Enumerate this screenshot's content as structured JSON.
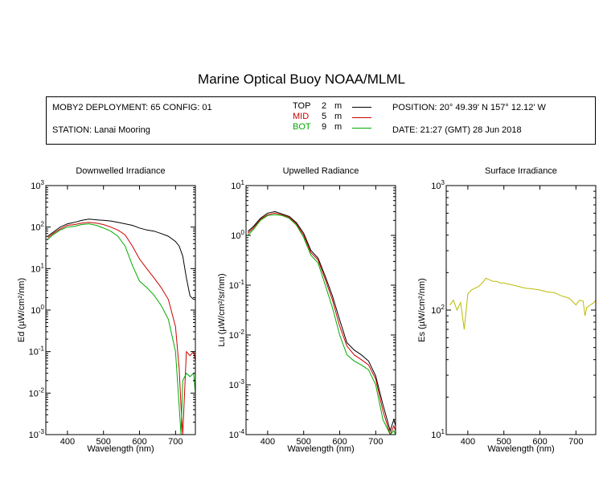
{
  "title": "Marine Optical Buoy NOAA/MLML",
  "info": {
    "deployment": "MOBY2 DEPLOYMENT: 65 CONFIG: 01",
    "station": "STATION: Lanai Mooring",
    "position": "POSITION: 20° 49.39' N   157° 12.12' W",
    "date": "DATE: 21:27 (GMT) 28 Jun 2018",
    "legend": [
      {
        "name": "TOP",
        "depth": "2",
        "unit": "m",
        "color": "#000000"
      },
      {
        "name": "MID",
        "depth": "5",
        "unit": "m",
        "color": "#cc0000"
      },
      {
        "name": "BOT",
        "depth": "9",
        "unit": "m",
        "color": "#00aa00"
      }
    ]
  },
  "colors": {
    "top": "#000000",
    "mid": "#cc0000",
    "bot": "#00aa00",
    "surface": "#bbbb00"
  },
  "chart_data": [
    {
      "type": "line",
      "title": "Downwelled Irradiance",
      "ylabel": "Ed  (µW/cm²/nm)",
      "xlabel": "Wavelength (nm)",
      "xlim": [
        340,
        755
      ],
      "ylim": [
        0.001,
        1000
      ],
      "yscale": "log",
      "xticks": [
        400,
        500,
        600,
        700
      ],
      "ytick_labels": [
        {
          "base": "10",
          "exp": "-3"
        },
        {
          "base": "10",
          "exp": "-2"
        },
        {
          "base": "10",
          "exp": "-1"
        },
        {
          "base": "10",
          "exp": "0"
        },
        {
          "base": "10",
          "exp": "1"
        },
        {
          "base": "10",
          "exp": "2"
        },
        {
          "base": "10",
          "exp": "3"
        }
      ],
      "series": [
        {
          "name": "TOP",
          "color": "#000000",
          "x": [
            345,
            360,
            380,
            400,
            420,
            440,
            460,
            480,
            500,
            520,
            540,
            560,
            580,
            600,
            620,
            640,
            660,
            680,
            700,
            710,
            720,
            730,
            740,
            750,
            755
          ],
          "y": [
            60,
            75,
            100,
            120,
            130,
            145,
            155,
            150,
            145,
            140,
            130,
            120,
            110,
            95,
            85,
            80,
            70,
            60,
            45,
            35,
            20,
            6,
            2.2,
            1.8,
            1.8
          ]
        },
        {
          "name": "MID",
          "color": "#cc0000",
          "x": [
            345,
            360,
            380,
            400,
            420,
            440,
            460,
            480,
            500,
            520,
            540,
            560,
            580,
            600,
            620,
            640,
            660,
            680,
            700,
            710,
            715,
            720,
            730,
            740,
            750,
            755
          ],
          "y": [
            55,
            70,
            90,
            110,
            115,
            125,
            130,
            125,
            115,
            100,
            85,
            65,
            35,
            17,
            10,
            6,
            3.5,
            1.8,
            0.4,
            0.04,
            0.005,
            0.001,
            0.1,
            0.08,
            0.1,
            0.06
          ]
        },
        {
          "name": "BOT",
          "color": "#00aa00",
          "x": [
            345,
            360,
            380,
            400,
            420,
            440,
            460,
            480,
            500,
            520,
            540,
            560,
            580,
            600,
            620,
            640,
            660,
            680,
            700,
            710,
            715,
            720,
            730,
            740,
            750,
            755
          ],
          "y": [
            50,
            65,
            85,
            100,
            105,
            115,
            120,
            110,
            95,
            80,
            60,
            35,
            12,
            5,
            3.5,
            2.3,
            1.3,
            0.6,
            0.1,
            0.005,
            0.001,
            0.02,
            0.03,
            0.025,
            0.03,
            0.01
          ]
        }
      ]
    },
    {
      "type": "line",
      "title": "Upwelled Radiance",
      "ylabel": "Lu  (µW/cm²/sr/nm)",
      "xlabel": "Wavelength (nm)",
      "xlim": [
        340,
        755
      ],
      "ylim": [
        0.0001,
        10
      ],
      "yscale": "log",
      "xticks": [
        400,
        500,
        600,
        700
      ],
      "ytick_labels": [
        {
          "base": "10",
          "exp": "-4"
        },
        {
          "base": "10",
          "exp": "-3"
        },
        {
          "base": "10",
          "exp": "-2"
        },
        {
          "base": "10",
          "exp": "-1"
        },
        {
          "base": "10",
          "exp": "0"
        },
        {
          "base": "10",
          "exp": "1"
        }
      ],
      "series": [
        {
          "name": "TOP",
          "color": "#000000",
          "x": [
            345,
            360,
            380,
            400,
            420,
            440,
            460,
            480,
            500,
            520,
            540,
            560,
            580,
            600,
            620,
            640,
            660,
            680,
            700,
            720,
            740,
            750,
            755
          ],
          "y": [
            1.2,
            1.5,
            2.2,
            2.8,
            3.0,
            2.7,
            2.4,
            1.8,
            1.1,
            0.5,
            0.35,
            0.15,
            0.06,
            0.02,
            0.007,
            0.005,
            0.004,
            0.003,
            0.0015,
            0.0004,
            0.00012,
            0.0002,
            0.00015
          ]
        },
        {
          "name": "MID",
          "color": "#cc0000",
          "x": [
            345,
            360,
            380,
            400,
            420,
            440,
            460,
            480,
            500,
            520,
            540,
            560,
            580,
            600,
            620,
            640,
            660,
            680,
            700,
            720,
            740,
            750,
            755
          ],
          "y": [
            1.1,
            1.4,
            2.1,
            2.6,
            2.8,
            2.6,
            2.3,
            1.7,
            1.0,
            0.45,
            0.32,
            0.13,
            0.05,
            0.015,
            0.006,
            0.004,
            0.0032,
            0.0025,
            0.0013,
            0.0003,
            0.0001,
            0.00015,
            0.00012
          ]
        },
        {
          "name": "BOT",
          "color": "#00aa00",
          "x": [
            345,
            360,
            380,
            400,
            420,
            440,
            460,
            480,
            500,
            520,
            540,
            560,
            580,
            600,
            620,
            640,
            660,
            680,
            700,
            720,
            740,
            750,
            755
          ],
          "y": [
            1.0,
            1.3,
            2.0,
            2.5,
            2.6,
            2.5,
            2.2,
            1.6,
            0.9,
            0.4,
            0.28,
            0.1,
            0.035,
            0.01,
            0.004,
            0.003,
            0.0025,
            0.002,
            0.001,
            0.0002,
            0.0001,
            0.00012,
            0.0001
          ]
        }
      ]
    },
    {
      "type": "line",
      "title": "Surface Irradiance",
      "ylabel": "Es  (µW/cm²/nm)",
      "xlabel": "Wavelength (nm)",
      "xlim": [
        340,
        755
      ],
      "ylim": [
        10,
        1000
      ],
      "yscale": "log",
      "xticks": [
        400,
        500,
        600,
        700
      ],
      "ytick_labels": [
        {
          "base": "10",
          "exp": "1"
        },
        {
          "base": "10",
          "exp": "2"
        },
        {
          "base": "10",
          "exp": "3"
        }
      ],
      "series": [
        {
          "name": "Surface",
          "color": "#bbbb00",
          "x": [
            350,
            360,
            370,
            380,
            390,
            400,
            410,
            420,
            430,
            440,
            450,
            460,
            470,
            480,
            490,
            500,
            520,
            540,
            560,
            580,
            600,
            620,
            640,
            660,
            680,
            690,
            700,
            710,
            720,
            725,
            730,
            740,
            750,
            755
          ],
          "y": [
            110,
            120,
            100,
            115,
            70,
            135,
            145,
            150,
            155,
            165,
            180,
            175,
            170,
            170,
            165,
            165,
            160,
            155,
            150,
            148,
            145,
            140,
            138,
            130,
            125,
            118,
            110,
            120,
            118,
            90,
            105,
            110,
            115,
            120
          ]
        }
      ]
    }
  ]
}
